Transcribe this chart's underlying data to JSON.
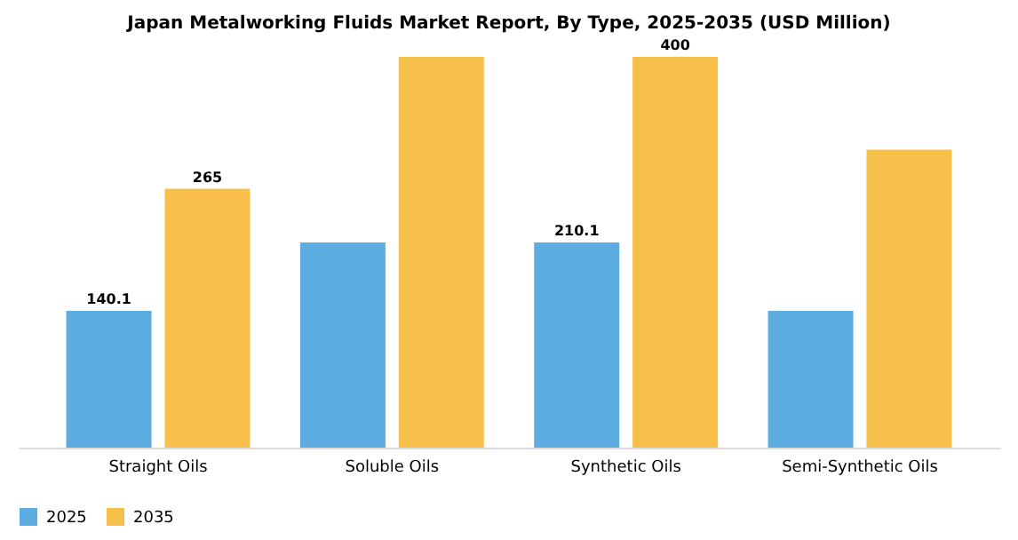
{
  "chart_data": {
    "type": "bar",
    "title": "Japan Metalworking Fluids Market Report, By Type, 2025-2035 (USD Million)",
    "categories": [
      "Straight Oils",
      "Soluble Oils",
      "Synthetic Oils",
      "Semi-Synthetic Oils"
    ],
    "series": [
      {
        "name": "2025",
        "color": "#5dade2",
        "values": [
          140.1,
          210,
          210.1,
          140
        ],
        "value_labels": [
          "140.1",
          null,
          "210.1",
          null
        ]
      },
      {
        "name": "2035",
        "color": "#f7c04a",
        "values": [
          265,
          400,
          400,
          305
        ],
        "value_labels": [
          "265",
          null,
          "400",
          null
        ]
      }
    ],
    "legend": "bottom",
    "grid": false
  }
}
